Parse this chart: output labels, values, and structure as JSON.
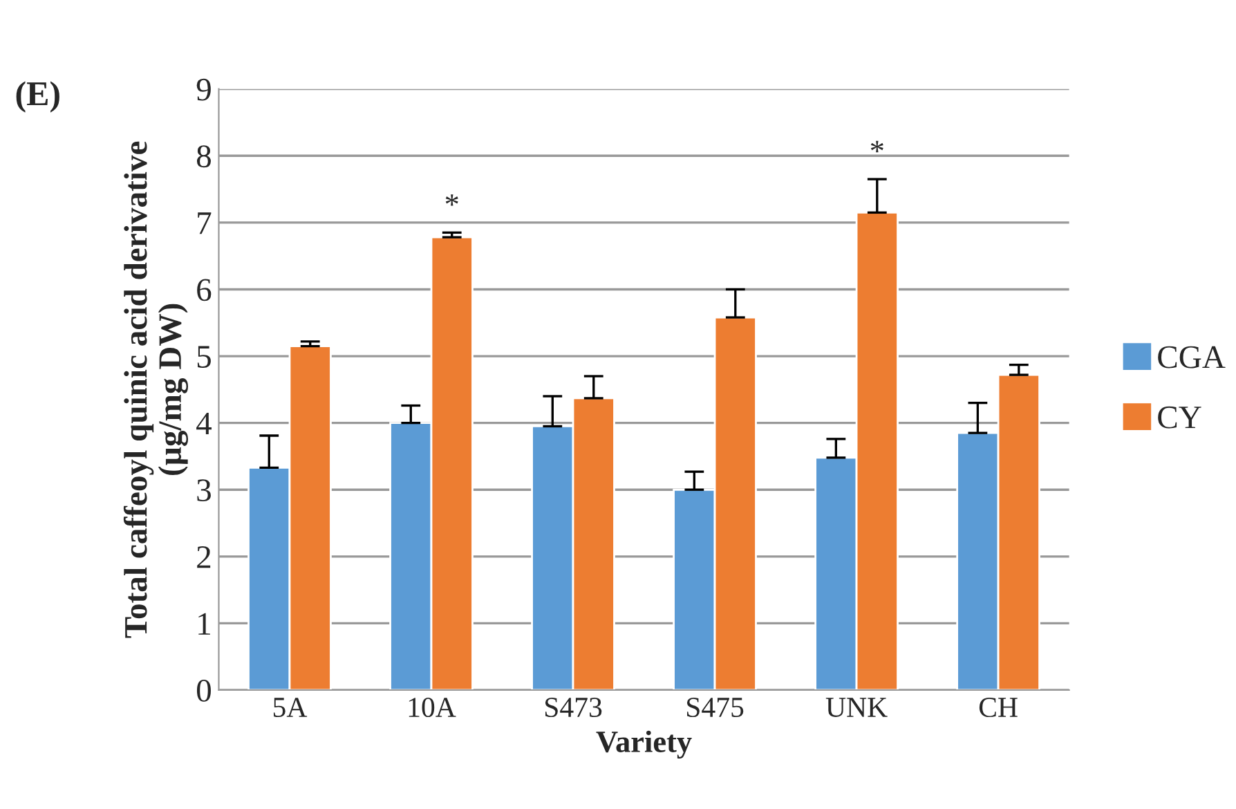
{
  "chart_data": {
    "type": "bar",
    "xlabel": "Variety",
    "ylabel": "Total caffeoyl quinic acid derivative\n(µg/mg DW)",
    "categories": [
      "5A",
      "10A",
      "S473",
      "S475",
      "UNK",
      "CH"
    ],
    "series": [
      {
        "name": "CGA",
        "color": "#5b9bd5",
        "values": [
          3.33,
          4.0,
          3.95,
          3.0,
          3.48,
          3.85
        ],
        "errors": [
          [
            3.33,
            3.81
          ],
          [
            4.0,
            4.26
          ],
          [
            3.95,
            4.4
          ],
          [
            3.0,
            3.27
          ],
          [
            3.48,
            3.76
          ],
          [
            3.85,
            4.3
          ]
        ]
      },
      {
        "name": "CY",
        "color": "#ed7d31",
        "values": [
          5.15,
          6.78,
          4.37,
          5.58,
          7.15,
          4.72
        ],
        "errors": [
          [
            5.15,
            5.22
          ],
          [
            6.78,
            6.85
          ],
          [
            4.37,
            4.7
          ],
          [
            5.58,
            6.0
          ],
          [
            7.15,
            7.65
          ],
          [
            4.72,
            4.87
          ]
        ]
      }
    ],
    "ylim": [
      0,
      9
    ],
    "yticks": [
      0,
      1,
      2,
      3,
      4,
      5,
      6,
      7,
      8,
      9
    ],
    "grid": "y",
    "legend": "right",
    "annotations": [
      "(E)",
      {
        "text": "*",
        "x": "10A",
        "y": 6.78
      },
      {
        "text": "*",
        "x": "UNK",
        "y": 7.15
      }
    ]
  }
}
